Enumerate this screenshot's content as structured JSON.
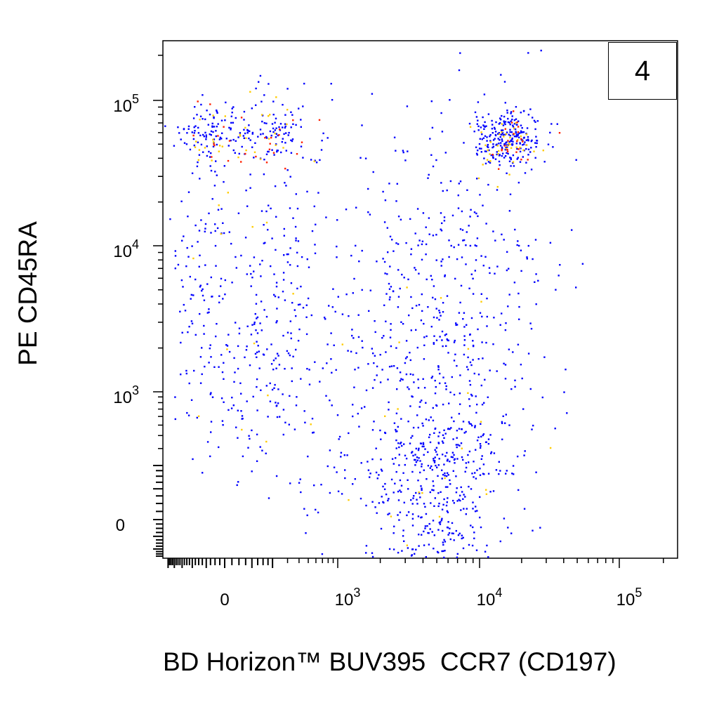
{
  "chart_data": {
    "type": "scatter",
    "title": "",
    "panel_label": "4",
    "xlabel": "BD Horizon™ BUV395  CCR7 (CD197)",
    "ylabel": "PE CD45RA",
    "x_scale": "biexponential",
    "y_scale": "biexponential",
    "xlim": [
      -600,
      250000
    ],
    "ylim": [
      -300,
      250000
    ],
    "x_tick_labels": [
      {
        "value": 0,
        "base": "0",
        "exp": ""
      },
      {
        "value": 1000,
        "base": "10",
        "exp": "3"
      },
      {
        "value": 10000,
        "base": "10",
        "exp": "4"
      },
      {
        "value": 100000,
        "base": "10",
        "exp": "5"
      }
    ],
    "y_tick_labels": [
      {
        "value": 0,
        "base": "0",
        "exp": ""
      },
      {
        "value": 1000,
        "base": "10",
        "exp": "3"
      },
      {
        "value": 10000,
        "base": "10",
        "exp": "4"
      },
      {
        "value": 100000,
        "base": "10",
        "exp": "5"
      }
    ],
    "density_colors": {
      "low": "#0000ff",
      "mid": "#ffcc00",
      "high": "#ff2000"
    },
    "populations": [
      {
        "name": "CCR7- CD45RA+",
        "x_center": 60,
        "x_spread": 180,
        "y_center": 60000,
        "y_spread_log": 0.12,
        "n": 260,
        "dense": true
      },
      {
        "name": "CCR7+ CD45RA+",
        "x_center": 16000,
        "x_spread_log": 0.12,
        "y_center": 55000,
        "y_spread_log": 0.1,
        "n": 300,
        "dense": true
      },
      {
        "name": "CCR7- CD45RA low",
        "x_center": 60,
        "x_spread": 200,
        "y_center": 3000,
        "y_spread_log": 0.6,
        "n": 340,
        "dense": false
      },
      {
        "name": "CCR7+ CD45RA- ",
        "x_center": 5000,
        "x_spread_log": 0.25,
        "y_center": 120,
        "y_spread": 220,
        "n": 360,
        "dense": false
      },
      {
        "name": "CCR7+ CD45RA mid",
        "x_center": 6000,
        "x_spread_log": 0.35,
        "y_center": 3000,
        "y_spread_log": 0.75,
        "n": 520,
        "dense": false
      },
      {
        "name": "scattered",
        "x_center": 1200,
        "x_spread_log": 0.45,
        "y_center": 1500,
        "y_spread_log": 0.9,
        "n": 160,
        "dense": false
      }
    ],
    "outliers": [
      {
        "x": 22000,
        "y": 210000
      },
      {
        "x": 14000,
        "y": 150000
      },
      {
        "x": 45000,
        "y": 13000
      },
      {
        "x": 37000,
        "y": 7500
      }
    ]
  }
}
